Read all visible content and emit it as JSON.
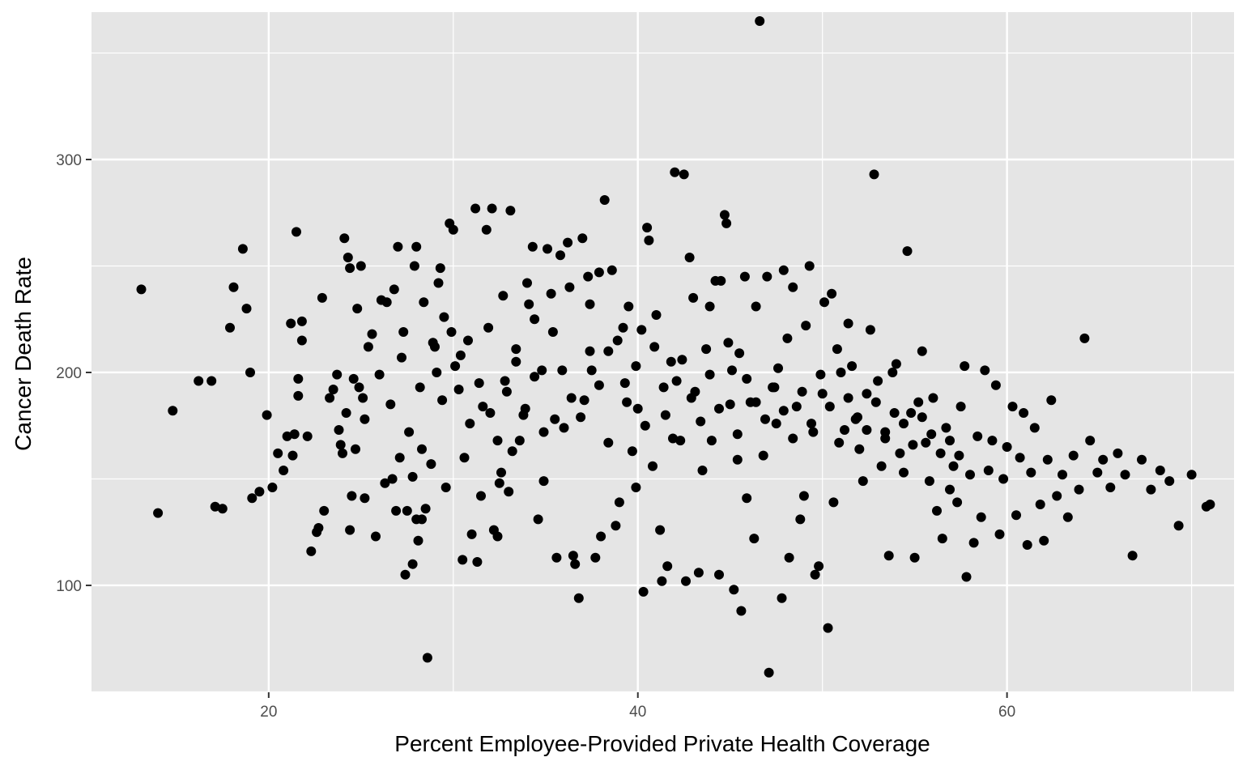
{
  "chart_data": {
    "type": "scatter",
    "title": "",
    "xlabel": "Percent Employee-Provided Private Health Coverage",
    "ylabel": "Cancer Death Rate",
    "xlim": [
      10.4,
      72.3
    ],
    "ylim": [
      49.8,
      369.2
    ],
    "x_ticks": [
      20,
      40,
      60
    ],
    "y_ticks": [
      100,
      200,
      300
    ],
    "x_tick_labels": [
      "20",
      "40",
      "60"
    ],
    "y_tick_labels": [
      "100",
      "200",
      "300"
    ],
    "grid": true,
    "legend": "none",
    "colors": {
      "panel": "#e5e5e5",
      "grid": "#ffffff",
      "point": "#000000",
      "tick_text": "#4d4d4d"
    },
    "points": [
      [
        13.1,
        239
      ],
      [
        14.0,
        134
      ],
      [
        14.8,
        182
      ],
      [
        16.2,
        196
      ],
      [
        16.9,
        196
      ],
      [
        17.1,
        137
      ],
      [
        17.5,
        136
      ],
      [
        17.9,
        221
      ],
      [
        18.1,
        240
      ],
      [
        18.6,
        258
      ],
      [
        18.8,
        230
      ],
      [
        19.0,
        200
      ],
      [
        19.1,
        141
      ],
      [
        19.5,
        144
      ],
      [
        19.9,
        180
      ],
      [
        20.2,
        146
      ],
      [
        20.5,
        162
      ],
      [
        20.8,
        154
      ],
      [
        21.0,
        170
      ],
      [
        21.2,
        223
      ],
      [
        21.3,
        161
      ],
      [
        21.4,
        171
      ],
      [
        21.5,
        266
      ],
      [
        21.6,
        197
      ],
      [
        21.6,
        189
      ],
      [
        21.8,
        224
      ],
      [
        21.8,
        215
      ],
      [
        22.1,
        170
      ],
      [
        22.3,
        116
      ],
      [
        22.6,
        125
      ],
      [
        22.7,
        127
      ],
      [
        22.9,
        235
      ],
      [
        23.0,
        135
      ],
      [
        23.3,
        188
      ],
      [
        23.5,
        192
      ],
      [
        23.7,
        199
      ],
      [
        23.8,
        173
      ],
      [
        23.9,
        166
      ],
      [
        24.0,
        162
      ],
      [
        24.1,
        263
      ],
      [
        24.2,
        181
      ],
      [
        24.3,
        254
      ],
      [
        24.4,
        249
      ],
      [
        24.4,
        126
      ],
      [
        24.5,
        142
      ],
      [
        24.6,
        197
      ],
      [
        24.7,
        164
      ],
      [
        24.8,
        230
      ],
      [
        24.9,
        193
      ],
      [
        25.0,
        250
      ],
      [
        25.1,
        188
      ],
      [
        25.2,
        141
      ],
      [
        25.2,
        178
      ],
      [
        25.4,
        212
      ],
      [
        25.6,
        218
      ],
      [
        25.8,
        123
      ],
      [
        26.0,
        199
      ],
      [
        26.1,
        234
      ],
      [
        26.3,
        148
      ],
      [
        26.4,
        233
      ],
      [
        26.6,
        185
      ],
      [
        26.7,
        150
      ],
      [
        26.8,
        239
      ],
      [
        26.9,
        135
      ],
      [
        27.0,
        259
      ],
      [
        27.1,
        160
      ],
      [
        27.2,
        207
      ],
      [
        27.3,
        219
      ],
      [
        27.4,
        105
      ],
      [
        27.5,
        135
      ],
      [
        27.6,
        172
      ],
      [
        27.8,
        110
      ],
      [
        27.9,
        250
      ],
      [
        28.0,
        259
      ],
      [
        28.0,
        131
      ],
      [
        28.1,
        121
      ],
      [
        28.2,
        193
      ],
      [
        28.3,
        164
      ],
      [
        28.4,
        233
      ],
      [
        28.5,
        136
      ],
      [
        28.6,
        66
      ],
      [
        28.8,
        157
      ],
      [
        29.0,
        212
      ],
      [
        29.1,
        200
      ],
      [
        29.2,
        242
      ],
      [
        29.3,
        249
      ],
      [
        29.5,
        226
      ],
      [
        29.6,
        146
      ],
      [
        29.8,
        270
      ],
      [
        30.0,
        267
      ],
      [
        30.1,
        203
      ],
      [
        30.3,
        192
      ],
      [
        30.5,
        112
      ],
      [
        30.6,
        160
      ],
      [
        30.8,
        215
      ],
      [
        31.0,
        124
      ],
      [
        31.2,
        277
      ],
      [
        31.3,
        111
      ],
      [
        31.5,
        142
      ],
      [
        31.6,
        184
      ],
      [
        31.8,
        267
      ],
      [
        32.0,
        181
      ],
      [
        32.1,
        277
      ],
      [
        32.2,
        126
      ],
      [
        32.4,
        123
      ],
      [
        32.5,
        148
      ],
      [
        32.6,
        153
      ],
      [
        32.7,
        236
      ],
      [
        32.8,
        196
      ],
      [
        33.0,
        144
      ],
      [
        33.1,
        276
      ],
      [
        33.2,
        163
      ],
      [
        33.4,
        211
      ],
      [
        33.6,
        168
      ],
      [
        33.8,
        180
      ],
      [
        34.0,
        242
      ],
      [
        34.1,
        232
      ],
      [
        34.3,
        259
      ],
      [
        34.4,
        225
      ],
      [
        34.6,
        131
      ],
      [
        34.8,
        201
      ],
      [
        34.9,
        149
      ],
      [
        35.1,
        258
      ],
      [
        35.3,
        237
      ],
      [
        35.5,
        178
      ],
      [
        35.6,
        113
      ],
      [
        35.8,
        255
      ],
      [
        36.0,
        174
      ],
      [
        36.2,
        261
      ],
      [
        36.3,
        240
      ],
      [
        36.5,
        114
      ],
      [
        36.6,
        110
      ],
      [
        36.8,
        94
      ],
      [
        37.0,
        263
      ],
      [
        37.1,
        187
      ],
      [
        37.3,
        245
      ],
      [
        37.4,
        232
      ],
      [
        37.5,
        201
      ],
      [
        37.7,
        113
      ],
      [
        37.9,
        247
      ],
      [
        38.0,
        123
      ],
      [
        38.2,
        281
      ],
      [
        38.4,
        210
      ],
      [
        38.6,
        248
      ],
      [
        38.8,
        128
      ],
      [
        39.0,
        139
      ],
      [
        39.2,
        221
      ],
      [
        39.3,
        195
      ],
      [
        39.5,
        231
      ],
      [
        39.7,
        163
      ],
      [
        39.9,
        146
      ],
      [
        40.0,
        183
      ],
      [
        40.2,
        220
      ],
      [
        40.3,
        97
      ],
      [
        40.5,
        268
      ],
      [
        40.6,
        262
      ],
      [
        40.8,
        156
      ],
      [
        41.0,
        227
      ],
      [
        41.2,
        126
      ],
      [
        41.3,
        102
      ],
      [
        41.5,
        180
      ],
      [
        41.6,
        109
      ],
      [
        41.8,
        205
      ],
      [
        42.0,
        294
      ],
      [
        42.1,
        196
      ],
      [
        42.3,
        168
      ],
      [
        42.5,
        293
      ],
      [
        42.6,
        102
      ],
      [
        42.8,
        254
      ],
      [
        43.0,
        235
      ],
      [
        43.1,
        191
      ],
      [
        43.3,
        106
      ],
      [
        43.5,
        154
      ],
      [
        43.7,
        211
      ],
      [
        43.9,
        231
      ],
      [
        44.0,
        168
      ],
      [
        44.2,
        243
      ],
      [
        44.4,
        105
      ],
      [
        44.5,
        243
      ],
      [
        44.7,
        274
      ],
      [
        44.8,
        270
      ],
      [
        45.0,
        185
      ],
      [
        45.1,
        201
      ],
      [
        45.2,
        98
      ],
      [
        45.4,
        159
      ],
      [
        45.5,
        209
      ],
      [
        45.6,
        88
      ],
      [
        45.8,
        245
      ],
      [
        45.9,
        141
      ],
      [
        46.1,
        186
      ],
      [
        46.3,
        122
      ],
      [
        46.4,
        231
      ],
      [
        46.6,
        365
      ],
      [
        46.8,
        161
      ],
      [
        47.0,
        245
      ],
      [
        47.1,
        59
      ],
      [
        47.3,
        193
      ],
      [
        47.5,
        176
      ],
      [
        47.6,
        202
      ],
      [
        47.8,
        94
      ],
      [
        47.9,
        248
      ],
      [
        48.1,
        216
      ],
      [
        48.2,
        113
      ],
      [
        48.4,
        240
      ],
      [
        48.6,
        184
      ],
      [
        48.8,
        131
      ],
      [
        49.0,
        142
      ],
      [
        49.1,
        222
      ],
      [
        49.3,
        250
      ],
      [
        49.5,
        172
      ],
      [
        49.6,
        105
      ],
      [
        49.8,
        109
      ],
      [
        50.0,
        190
      ],
      [
        50.1,
        233
      ],
      [
        50.3,
        80
      ],
      [
        50.5,
        237
      ],
      [
        50.6,
        139
      ],
      [
        50.8,
        211
      ],
      [
        51.0,
        200
      ],
      [
        51.2,
        173
      ],
      [
        51.4,
        223
      ],
      [
        51.6,
        203
      ],
      [
        51.8,
        178
      ],
      [
        52.0,
        164
      ],
      [
        52.2,
        149
      ],
      [
        52.4,
        190
      ],
      [
        52.6,
        220
      ],
      [
        52.8,
        293
      ],
      [
        53.0,
        196
      ],
      [
        53.2,
        156
      ],
      [
        53.4,
        172
      ],
      [
        53.6,
        114
      ],
      [
        53.8,
        200
      ],
      [
        54.0,
        204
      ],
      [
        54.2,
        162
      ],
      [
        54.4,
        153
      ],
      [
        54.6,
        257
      ],
      [
        54.8,
        181
      ],
      [
        55.0,
        113
      ],
      [
        55.2,
        186
      ],
      [
        55.4,
        210
      ],
      [
        55.6,
        167
      ],
      [
        55.8,
        149
      ],
      [
        56.0,
        188
      ],
      [
        56.2,
        135
      ],
      [
        56.5,
        122
      ],
      [
        56.7,
        174
      ],
      [
        56.9,
        145
      ],
      [
        57.1,
        156
      ],
      [
        57.3,
        139
      ],
      [
        57.5,
        184
      ],
      [
        57.7,
        203
      ],
      [
        57.8,
        104
      ],
      [
        58.0,
        152
      ],
      [
        58.2,
        120
      ],
      [
        58.4,
        170
      ],
      [
        58.6,
        132
      ],
      [
        58.8,
        201
      ],
      [
        59.0,
        154
      ],
      [
        59.2,
        168
      ],
      [
        59.4,
        194
      ],
      [
        59.6,
        124
      ],
      [
        59.8,
        150
      ],
      [
        60.0,
        165
      ],
      [
        60.3,
        184
      ],
      [
        60.5,
        133
      ],
      [
        60.7,
        160
      ],
      [
        60.9,
        181
      ],
      [
        61.1,
        119
      ],
      [
        61.3,
        153
      ],
      [
        61.5,
        174
      ],
      [
        61.8,
        138
      ],
      [
        62.0,
        121
      ],
      [
        62.2,
        159
      ],
      [
        62.4,
        187
      ],
      [
        62.7,
        142
      ],
      [
        63.0,
        152
      ],
      [
        63.3,
        132
      ],
      [
        63.6,
        161
      ],
      [
        63.9,
        145
      ],
      [
        64.2,
        216
      ],
      [
        64.5,
        168
      ],
      [
        64.9,
        153
      ],
      [
        65.2,
        159
      ],
      [
        65.6,
        146
      ],
      [
        66.0,
        162
      ],
      [
        66.4,
        152
      ],
      [
        66.8,
        114
      ],
      [
        67.3,
        159
      ],
      [
        67.8,
        145
      ],
      [
        68.3,
        154
      ],
      [
        68.8,
        149
      ],
      [
        69.3,
        128
      ],
      [
        70.0,
        152
      ],
      [
        70.8,
        137
      ],
      [
        71.0,
        138
      ],
      [
        28.3,
        131
      ],
      [
        27.8,
        151
      ],
      [
        28.9,
        214
      ],
      [
        29.4,
        187
      ],
      [
        29.9,
        219
      ],
      [
        30.4,
        208
      ],
      [
        30.9,
        176
      ],
      [
        31.4,
        195
      ],
      [
        31.9,
        221
      ],
      [
        32.4,
        168
      ],
      [
        32.9,
        191
      ],
      [
        33.4,
        205
      ],
      [
        33.9,
        183
      ],
      [
        34.4,
        198
      ],
      [
        34.9,
        172
      ],
      [
        35.4,
        219
      ],
      [
        35.9,
        201
      ],
      [
        36.4,
        188
      ],
      [
        36.9,
        179
      ],
      [
        37.4,
        210
      ],
      [
        37.9,
        194
      ],
      [
        38.4,
        167
      ],
      [
        38.9,
        215
      ],
      [
        39.4,
        186
      ],
      [
        39.9,
        203
      ],
      [
        40.4,
        175
      ],
      [
        40.9,
        212
      ],
      [
        41.4,
        193
      ],
      [
        41.9,
        169
      ],
      [
        42.4,
        206
      ],
      [
        42.9,
        188
      ],
      [
        43.4,
        177
      ],
      [
        43.9,
        199
      ],
      [
        44.4,
        183
      ],
      [
        44.9,
        214
      ],
      [
        45.4,
        171
      ],
      [
        45.9,
        197
      ],
      [
        46.4,
        186
      ],
      [
        46.9,
        178
      ],
      [
        47.4,
        193
      ],
      [
        47.9,
        182
      ],
      [
        48.4,
        169
      ],
      [
        48.9,
        191
      ],
      [
        49.4,
        176
      ],
      [
        49.9,
        199
      ],
      [
        50.4,
        184
      ],
      [
        50.9,
        167
      ],
      [
        51.4,
        188
      ],
      [
        51.9,
        179
      ],
      [
        52.4,
        173
      ],
      [
        52.9,
        186
      ],
      [
        53.4,
        169
      ],
      [
        53.9,
        181
      ],
      [
        54.4,
        176
      ],
      [
        54.9,
        166
      ],
      [
        55.4,
        179
      ],
      [
        55.9,
        171
      ],
      [
        56.4,
        162
      ],
      [
        56.9,
        168
      ],
      [
        57.4,
        161
      ]
    ]
  }
}
